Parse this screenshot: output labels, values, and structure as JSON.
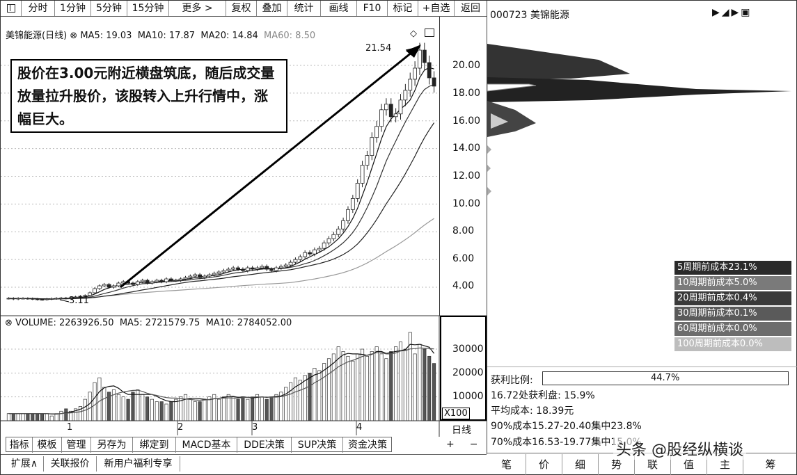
{
  "toolbar": [
    "分时",
    "1分钟",
    "5分钟",
    "15分钟",
    "更多 >",
    "复权",
    "叠加",
    "统计",
    "画线",
    "F10",
    "标记",
    "+自选",
    "返回"
  ],
  "right": {
    "title": "000723 美锦能源"
  },
  "chart": {
    "stock_label": "美锦能源(日线)",
    "ma5": "MA5: 19.03",
    "ma10": "MA10: 17.87",
    "ma20": "MA20: 14.84",
    "ma60": "MA60: 8.50",
    "ylabels": [
      "20.00",
      "18.00",
      "16.00",
      "14.00",
      "12.00",
      "10.00",
      "8.00",
      "6.00",
      "4.00"
    ],
    "high_label": "21.54",
    "low_label": "3.11"
  },
  "chart_data": {
    "type": "candlestick",
    "close_series": [
      3.2,
      3.15,
      3.2,
      3.2,
      3.18,
      3.15,
      3.12,
      3.11,
      3.15,
      3.18,
      3.2,
      3.22,
      3.2,
      3.25,
      3.3,
      3.35,
      3.4,
      3.6,
      3.9,
      4.1,
      4.2,
      4.0,
      4.1,
      4.3,
      4.4,
      4.3,
      4.2,
      4.4,
      4.5,
      4.3,
      4.4,
      4.5,
      4.4,
      4.6,
      4.5,
      4.5,
      4.6,
      4.7,
      4.8,
      4.9,
      4.7,
      4.8,
      4.9,
      5.0,
      5.1,
      5.2,
      5.3,
      5.4,
      5.3,
      5.2,
      5.4,
      5.3,
      5.4,
      5.5,
      5.3,
      5.2,
      5.4,
      5.5,
      5.6,
      5.8,
      6.0,
      6.2,
      6.5,
      6.4,
      6.7,
      6.8,
      7.2,
      7.5,
      7.8,
      8.2,
      8.8,
      9.6,
      10.4,
      11.5,
      12.8,
      13.5,
      14.8,
      15.6,
      16.8,
      17.2,
      16.3,
      16.5,
      17.5,
      18.2,
      19.0,
      19.8,
      21.1,
      20.2,
      19.1,
      18.5
    ],
    "ma5": 19.03,
    "ma10": 17.87,
    "ma20": 14.84,
    "ma60": 8.5,
    "high": 21.54,
    "low": 3.11,
    "volume_series": [
      3,
      3,
      3,
      3,
      3,
      3,
      3,
      3,
      3,
      2,
      3,
      4,
      5,
      4,
      5,
      6,
      9,
      12,
      16,
      18,
      14,
      12,
      13,
      11,
      10,
      9,
      12,
      13,
      11,
      10,
      9,
      8,
      8,
      7,
      8,
      9,
      10,
      11,
      9,
      8,
      8,
      9,
      10,
      11,
      9,
      10,
      11,
      10,
      9,
      10,
      9,
      10,
      11,
      10,
      9,
      10,
      11,
      12,
      14,
      16,
      18,
      17,
      19,
      20,
      22,
      21,
      24,
      26,
      28,
      31,
      29,
      27,
      25,
      28,
      30,
      27,
      29,
      31,
      28,
      26,
      29,
      31,
      33,
      30,
      37,
      28,
      32,
      30,
      27,
      24
    ],
    "volume_ylim": [
      0,
      38000
    ],
    "price_ylim": [
      2.4,
      22.8
    ]
  },
  "annotation": "股价在3.00元附近横盘筑底，随后成交量放量拉升股价，该股转入上升行情中，涨幅巨大。",
  "volume": {
    "label": "VOLUME: 2263926.50",
    "ma5": "MA5: 2721579.75",
    "ma10": "MA10: 2784052.00",
    "ylabels": [
      "30000",
      "20000",
      "10000"
    ],
    "unit": "X100"
  },
  "xlabels": [
    "1",
    "2",
    "3",
    "4"
  ],
  "period": "日线",
  "zoom": "+−",
  "tabs": [
    "指标",
    "模板",
    "管理",
    "另存为",
    "绑定到",
    "MACD基本",
    "DDE决策",
    "SUP决策",
    "资金决策"
  ],
  "bottom": [
    "扩展∧",
    "关联报价",
    "新用户福利专享"
  ],
  "legend": [
    "5周期前成本23.1%",
    "10周期前成本5.0%",
    "20周期前成本0.4%",
    "30周期前成本0.1%",
    "60周期前成本0.0%",
    "100周期前成本0.0%"
  ],
  "info": {
    "ratio_label": "获利比例:",
    "ratio_value": "44.7%",
    "line1": "16.72处获利盘: 15.9%",
    "line2": "平均成本: 18.39元",
    "line3": "90%成本15.27-20.40集中23.8%",
    "line4": "70%成本16.53-19.77集中15.0%"
  },
  "right_tabs": [
    "笔",
    "价",
    "细",
    "势",
    "联",
    "值",
    "主",
    "筹"
  ],
  "watermark": "头条 @股经纵横谈"
}
